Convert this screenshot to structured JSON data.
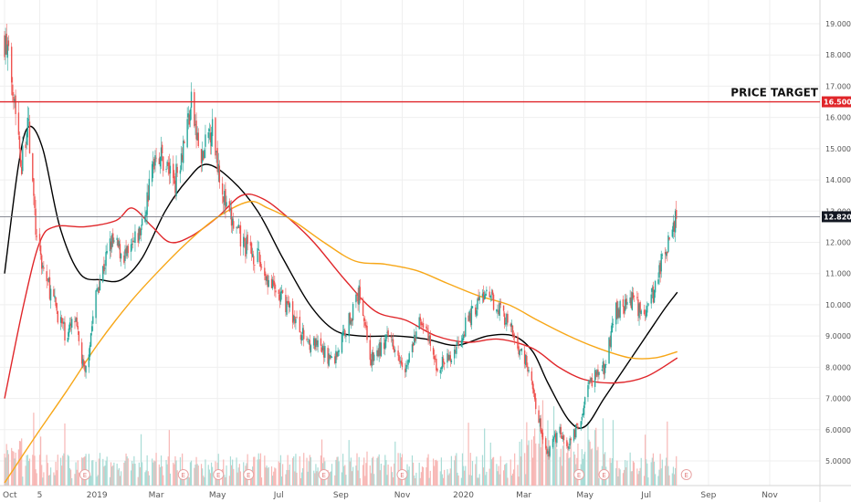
{
  "chart_data": {
    "type": "candlestick",
    "x_tick_labels": [
      "Oct",
      "5",
      "2019",
      "Mar",
      "May",
      "Jul",
      "Sep",
      "Nov",
      "2020",
      "Mar",
      "May",
      "Jul",
      "Sep",
      "Nov"
    ],
    "y_tick_labels": [
      "5.0000",
      "6.0000",
      "7.0000",
      "8.0000",
      "9.0000",
      "10.0000",
      "11.0000",
      "12.0000",
      "13.0000",
      "14.0000",
      "15.0000",
      "16.0000",
      "17.0000",
      "18.0000",
      "19.0000"
    ],
    "ylim": [
      4.4,
      19.5
    ],
    "grid": true,
    "annotations": {
      "price_target_label": "PRICE TARGET",
      "price_target_value": 16.5,
      "price_target_tag": "16.5000",
      "last_price_value": 12.82,
      "last_price_tag": "12.8200"
    },
    "price_keypoints": [
      {
        "x": "2018-10-01",
        "y": 18.5
      },
      {
        "x": "2018-10-10",
        "y": 17.0
      },
      {
        "x": "2018-10-18",
        "y": 14.5
      },
      {
        "x": "2018-10-24",
        "y": 16.0
      },
      {
        "x": "2018-11-02",
        "y": 12.0
      },
      {
        "x": "2018-11-10",
        "y": 11.0
      },
      {
        "x": "2018-11-20",
        "y": 10.0
      },
      {
        "x": "2018-12-01",
        "y": 9.0
      },
      {
        "x": "2018-12-10",
        "y": 9.5
      },
      {
        "x": "2018-12-20",
        "y": 7.7
      },
      {
        "x": "2019-01-01",
        "y": 10.5
      },
      {
        "x": "2019-01-15",
        "y": 12.0
      },
      {
        "x": "2019-02-01",
        "y": 11.5
      },
      {
        "x": "2019-02-15",
        "y": 12.5
      },
      {
        "x": "2019-03-01",
        "y": 15.0
      },
      {
        "x": "2019-03-20",
        "y": 14.0
      },
      {
        "x": "2019-04-05",
        "y": 16.4
      },
      {
        "x": "2019-04-15",
        "y": 14.5
      },
      {
        "x": "2019-04-25",
        "y": 15.8
      },
      {
        "x": "2019-05-10",
        "y": 13.0
      },
      {
        "x": "2019-05-25",
        "y": 12.0
      },
      {
        "x": "2019-06-10",
        "y": 11.5
      },
      {
        "x": "2019-06-25",
        "y": 10.5
      },
      {
        "x": "2019-07-10",
        "y": 10.0
      },
      {
        "x": "2019-07-25",
        "y": 9.0
      },
      {
        "x": "2019-08-10",
        "y": 8.6
      },
      {
        "x": "2019-08-25",
        "y": 8.2
      },
      {
        "x": "2019-09-05",
        "y": 9.2
      },
      {
        "x": "2019-09-20",
        "y": 10.4
      },
      {
        "x": "2019-10-01",
        "y": 8.2
      },
      {
        "x": "2019-10-20",
        "y": 9.0
      },
      {
        "x": "2019-11-05",
        "y": 8.0
      },
      {
        "x": "2019-11-20",
        "y": 9.6
      },
      {
        "x": "2019-12-05",
        "y": 8.0
      },
      {
        "x": "2019-12-20",
        "y": 8.3
      },
      {
        "x": "2020-01-05",
        "y": 9.5
      },
      {
        "x": "2020-01-20",
        "y": 10.3
      },
      {
        "x": "2020-02-05",
        "y": 10.0
      },
      {
        "x": "2020-02-20",
        "y": 9.0
      },
      {
        "x": "2020-03-05",
        "y": 8.0
      },
      {
        "x": "2020-03-15",
        "y": 6.5
      },
      {
        "x": "2020-03-25",
        "y": 5.2
      },
      {
        "x": "2020-04-05",
        "y": 6.0
      },
      {
        "x": "2020-04-15",
        "y": 5.5
      },
      {
        "x": "2020-04-25",
        "y": 6.2
      },
      {
        "x": "2020-05-05",
        "y": 7.5
      },
      {
        "x": "2020-05-20",
        "y": 8.0
      },
      {
        "x": "2020-06-01",
        "y": 9.8
      },
      {
        "x": "2020-06-15",
        "y": 10.2
      },
      {
        "x": "2020-06-25",
        "y": 9.8
      },
      {
        "x": "2020-07-05",
        "y": 10.0
      },
      {
        "x": "2020-07-15",
        "y": 11.2
      },
      {
        "x": "2020-07-25",
        "y": 12.3
      },
      {
        "x": "2020-07-31",
        "y": 12.82
      }
    ],
    "series": [
      {
        "color": "#000000",
        "points": [
          {
            "x": "2018-10-01",
            "y": 11.0
          },
          {
            "x": "2018-10-15",
            "y": 14.5
          },
          {
            "x": "2018-10-25",
            "y": 15.7
          },
          {
            "x": "2018-11-08",
            "y": 15.0
          },
          {
            "x": "2018-11-25",
            "y": 12.5
          },
          {
            "x": "2018-12-15",
            "y": 11.0
          },
          {
            "x": "2019-01-05",
            "y": 10.8
          },
          {
            "x": "2019-01-25",
            "y": 10.8
          },
          {
            "x": "2019-02-15",
            "y": 11.5
          },
          {
            "x": "2019-03-10",
            "y": 13.0
          },
          {
            "x": "2019-04-01",
            "y": 14.0
          },
          {
            "x": "2019-04-20",
            "y": 14.5
          },
          {
            "x": "2019-05-15",
            "y": 14.0
          },
          {
            "x": "2019-06-10",
            "y": 13.0
          },
          {
            "x": "2019-07-05",
            "y": 11.5
          },
          {
            "x": "2019-08-01",
            "y": 10.0
          },
          {
            "x": "2019-08-25",
            "y": 9.2
          },
          {
            "x": "2019-09-20",
            "y": 9.0
          },
          {
            "x": "2019-10-25",
            "y": 9.0
          },
          {
            "x": "2019-11-25",
            "y": 8.9
          },
          {
            "x": "2019-12-25",
            "y": 8.7
          },
          {
            "x": "2020-01-25",
            "y": 9.0
          },
          {
            "x": "2020-02-20",
            "y": 9.0
          },
          {
            "x": "2020-03-10",
            "y": 8.5
          },
          {
            "x": "2020-03-25",
            "y": 7.5
          },
          {
            "x": "2020-04-15",
            "y": 6.3
          },
          {
            "x": "2020-05-01",
            "y": 6.1
          },
          {
            "x": "2020-05-20",
            "y": 7.0
          },
          {
            "x": "2020-06-10",
            "y": 8.0
          },
          {
            "x": "2020-07-01",
            "y": 9.0
          },
          {
            "x": "2020-07-20",
            "y": 9.9
          },
          {
            "x": "2020-08-01",
            "y": 10.4
          }
        ]
      },
      {
        "color": "#e0262a",
        "points": [
          {
            "x": "2018-10-01",
            "y": 7.0
          },
          {
            "x": "2018-10-20",
            "y": 10.0
          },
          {
            "x": "2018-11-05",
            "y": 12.0
          },
          {
            "x": "2018-11-20",
            "y": 12.5
          },
          {
            "x": "2018-12-20",
            "y": 12.5
          },
          {
            "x": "2019-01-20",
            "y": 12.7
          },
          {
            "x": "2019-02-05",
            "y": 13.1
          },
          {
            "x": "2019-02-25",
            "y": 12.5
          },
          {
            "x": "2019-03-15",
            "y": 12.0
          },
          {
            "x": "2019-04-05",
            "y": 12.2
          },
          {
            "x": "2019-05-01",
            "y": 12.8
          },
          {
            "x": "2019-05-25",
            "y": 13.5
          },
          {
            "x": "2019-06-15",
            "y": 13.4
          },
          {
            "x": "2019-07-10",
            "y": 12.8
          },
          {
            "x": "2019-08-05",
            "y": 12.0
          },
          {
            "x": "2019-09-05",
            "y": 10.8
          },
          {
            "x": "2019-10-05",
            "y": 9.8
          },
          {
            "x": "2019-11-05",
            "y": 9.5
          },
          {
            "x": "2019-12-05",
            "y": 9.0
          },
          {
            "x": "2020-01-05",
            "y": 8.8
          },
          {
            "x": "2020-02-05",
            "y": 8.9
          },
          {
            "x": "2020-03-10",
            "y": 8.6
          },
          {
            "x": "2020-04-05",
            "y": 8.0
          },
          {
            "x": "2020-05-01",
            "y": 7.6
          },
          {
            "x": "2020-06-01",
            "y": 7.5
          },
          {
            "x": "2020-07-01",
            "y": 7.7
          },
          {
            "x": "2020-08-01",
            "y": 8.3
          }
        ]
      },
      {
        "color": "#f7a718",
        "points": [
          {
            "x": "2018-10-01",
            "y": 4.3
          },
          {
            "x": "2018-11-01",
            "y": 5.8
          },
          {
            "x": "2018-12-01",
            "y": 7.2
          },
          {
            "x": "2019-01-01",
            "y": 8.7
          },
          {
            "x": "2019-02-01",
            "y": 10.0
          },
          {
            "x": "2019-03-01",
            "y": 11.0
          },
          {
            "x": "2019-04-01",
            "y": 12.0
          },
          {
            "x": "2019-05-01",
            "y": 12.8
          },
          {
            "x": "2019-06-01",
            "y": 13.3
          },
          {
            "x": "2019-06-20",
            "y": 13.1
          },
          {
            "x": "2019-07-15",
            "y": 12.7
          },
          {
            "x": "2019-08-15",
            "y": 12.0
          },
          {
            "x": "2019-09-15",
            "y": 11.4
          },
          {
            "x": "2019-10-15",
            "y": 11.3
          },
          {
            "x": "2019-11-15",
            "y": 11.1
          },
          {
            "x": "2019-12-15",
            "y": 10.7
          },
          {
            "x": "2020-01-15",
            "y": 10.3
          },
          {
            "x": "2020-02-15",
            "y": 10.0
          },
          {
            "x": "2020-03-15",
            "y": 9.5
          },
          {
            "x": "2020-04-15",
            "y": 9.0
          },
          {
            "x": "2020-05-15",
            "y": 8.6
          },
          {
            "x": "2020-06-15",
            "y": 8.3
          },
          {
            "x": "2020-07-10",
            "y": 8.3
          },
          {
            "x": "2020-08-01",
            "y": 8.5
          }
        ]
      }
    ]
  },
  "colors": {
    "candle_up": "#26a69a",
    "candle_down": "#ef5350",
    "volume_up": "#a9dcd6",
    "volume_down": "#f7b7b5",
    "grid": "#efefef",
    "price_target_line": "#e0262a",
    "last_price_line": "#787b86",
    "last_price_tag_bg": "#131722",
    "price_target_tag_bg": "#e0262a"
  }
}
